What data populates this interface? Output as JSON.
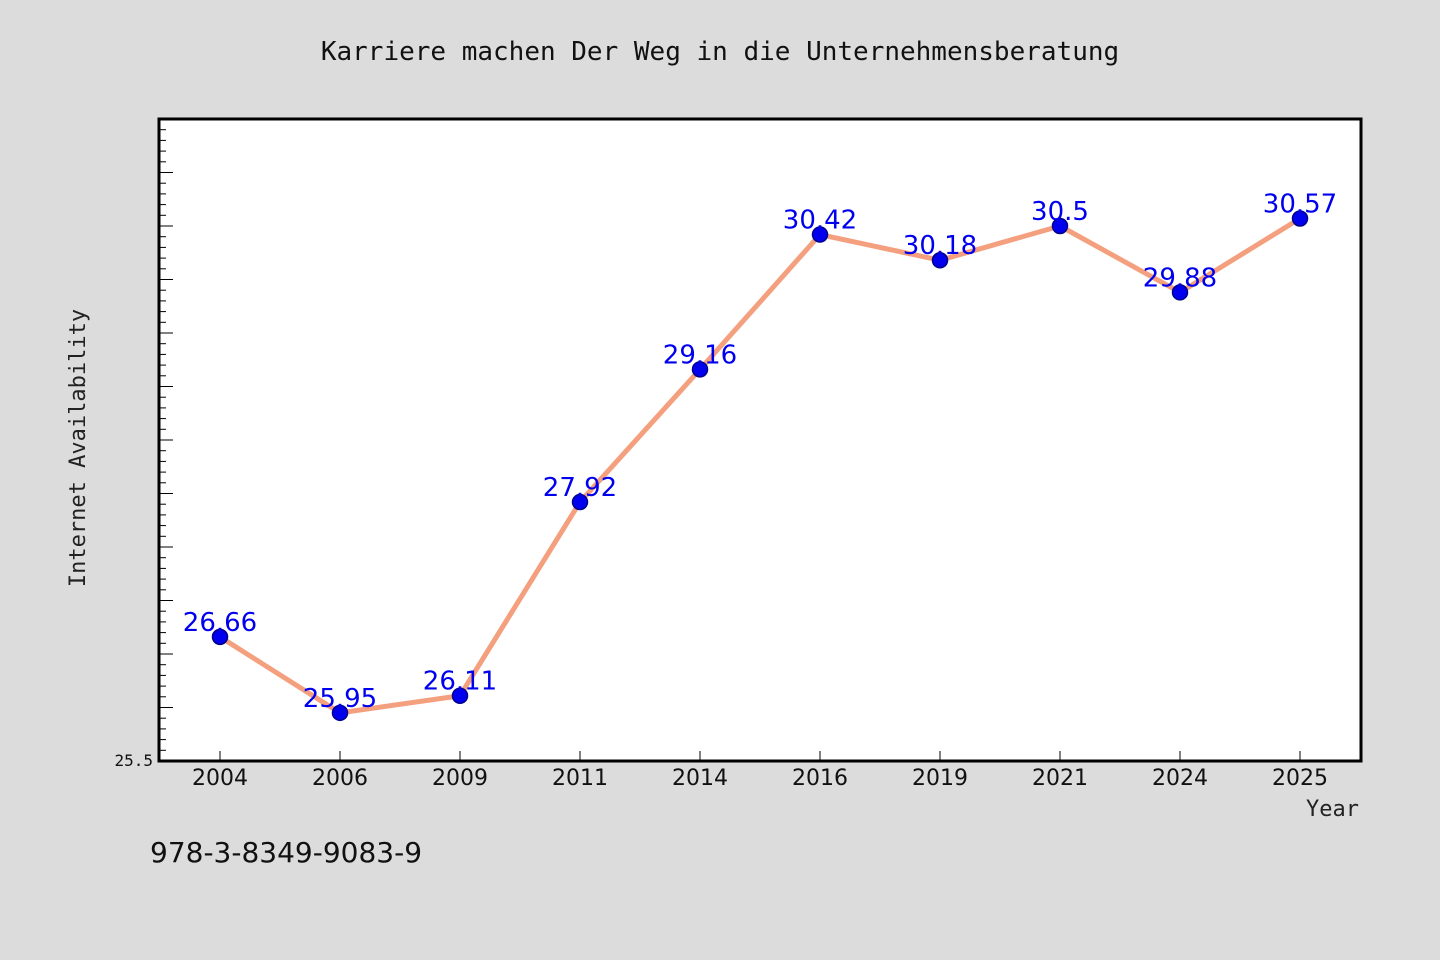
{
  "chart_data": {
    "type": "line",
    "title": "Karriere machen Der Weg in die Unternehmensberatung",
    "xlabel": "Year",
    "ylabel": "Internet Availability",
    "categories": [
      "2004",
      "2006",
      "2009",
      "2011",
      "2014",
      "2016",
      "2019",
      "2021",
      "2024",
      "2025"
    ],
    "series": [
      {
        "values": [
          26.66,
          25.95,
          26.11,
          27.92,
          29.16,
          30.42,
          30.18,
          30.5,
          29.88,
          30.57
        ]
      }
    ],
    "data_labels": [
      "26.66",
      "25.95",
      "26.11",
      "27.92",
      "29.16",
      "30.42",
      "30.18",
      "30.5",
      "29.88",
      "30.57"
    ],
    "ylim": [
      25.5,
      31.5
    ],
    "yticks_labeled": [
      "25.5"
    ],
    "grid": false,
    "legend": "none",
    "colors": {
      "line": "#f4a07f",
      "marker": "#0000ee",
      "label": "#0000ee",
      "background": "#dcdcdc",
      "plot_background": "#ffffff"
    }
  },
  "footer": {
    "isbn": "978-3-8349-9083-9"
  }
}
